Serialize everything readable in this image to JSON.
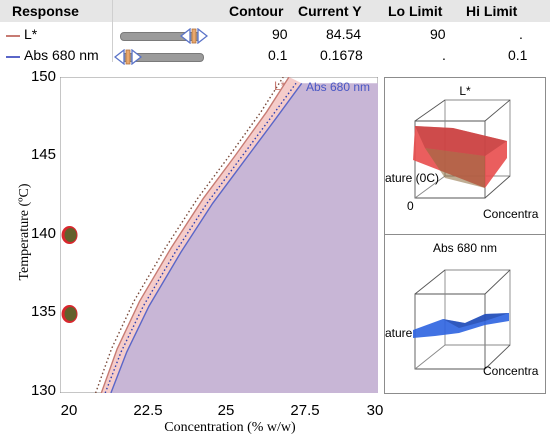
{
  "table": {
    "headers": [
      "Response",
      "Contour",
      "Current Y",
      "Lo Limit",
      "Hi Limit"
    ],
    "rows": [
      {
        "name": "L*",
        "contour": "90",
        "current_y": "84.54",
        "lo_limit": "90",
        "hi_limit": ".",
        "color": "#c77b73",
        "slider_fraction": 0.6
      },
      {
        "name": "Abs 680 nm",
        "contour": "0.1",
        "current_y": "0.1678",
        "lo_limit": ".",
        "hi_limit": "0.1",
        "color": "#5a66c8",
        "slider_fraction": 0.1
      }
    ]
  },
  "main_plot": {
    "x_axis_label": "Concentration (% w/w)",
    "y_axis_label": "Temperature (ºC)",
    "x_ticks": [
      "20",
      "22.5",
      "25",
      "27.5",
      "30"
    ],
    "y_ticks": [
      "150",
      "145",
      "140",
      "135",
      "130"
    ],
    "contour_labels": [
      "L*",
      "Abs 680 nm"
    ],
    "fill_color": "#c8b6d6",
    "band_color": "#f4c6c4"
  },
  "surface_panels": [
    {
      "title": "L*",
      "y_label": "ature (0C)",
      "origin_label": "0",
      "x_label": "Concentra",
      "surface_color": "#e84d4d"
    },
    {
      "title": "Abs 680 nm",
      "y_label": "ature",
      "x_label": "Concentra",
      "surface_color": "#2c63e0"
    }
  ],
  "chart_data": {
    "type": "line",
    "title": "",
    "xlabel": "Concentration (% w/w)",
    "ylabel": "Temperature (ºC)",
    "xlim": [
      20,
      30
    ],
    "ylim": [
      130,
      150
    ],
    "series": [
      {
        "name": "L*",
        "x": [
          21.3,
          21.8,
          22.5,
          23.5,
          24.5,
          25.5,
          26.5,
          27.2
        ],
        "y": [
          130,
          132.8,
          135.8,
          139.2,
          142.3,
          145.0,
          147.8,
          150
        ]
      },
      {
        "name": "Abs 680 nm",
        "x": [
          21.6,
          22.1,
          22.8,
          23.8,
          24.8,
          25.8,
          26.8,
          27.6
        ],
        "y": [
          130,
          132.6,
          135.5,
          138.9,
          142.0,
          144.7,
          147.4,
          149.6
        ]
      }
    ],
    "markers": [
      {
        "x": 20.3,
        "y": 140
      },
      {
        "x": 20.3,
        "y": 135
      }
    ]
  }
}
